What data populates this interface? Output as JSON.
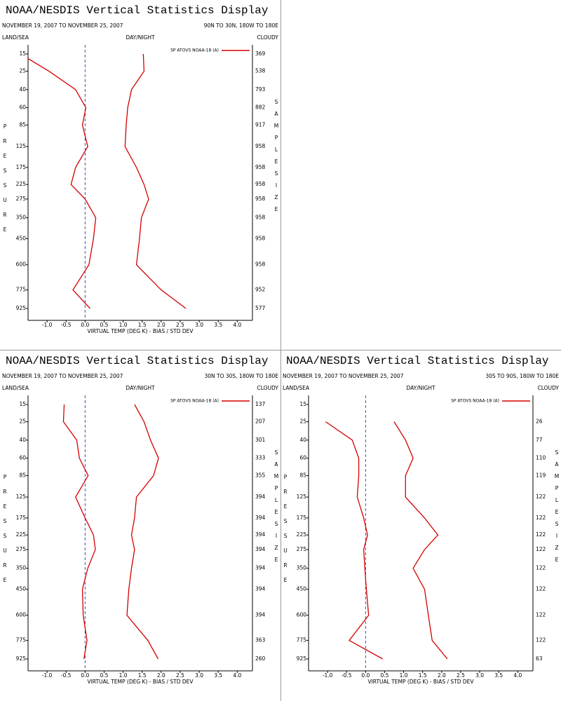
{
  "chart_data": [
    {
      "type": "line",
      "title": "NOAA/NESDIS Vertical Statistics Display",
      "subtitle": "NOVEMBER 19, 2007 TO NOVEMBER 25, 2007",
      "region": "90N TO 30N, 180W TO 180E",
      "land_sea": "LAND/SEA",
      "day_night": "DAY/NIGHT",
      "cloudy": "CLOUDY",
      "xlabel": "VIRTUAL TEMP (DEG K) - BIAS / STD DEV",
      "ylabel": "PRESSURE",
      "y2label": "SAMPLE SIZE",
      "xlim": [
        -1.5,
        4.4
      ],
      "xticks": [
        {
          "value": -1,
          "label": "-1.0"
        },
        -0.5,
        {
          "value": 0,
          "label": "0.0"
        },
        0.5,
        {
          "value": 1,
          "label": "1.0"
        },
        1.5,
        {
          "value": 2,
          "label": "2.0"
        },
        2.5,
        {
          "value": 3,
          "label": "3.0"
        },
        3.5,
        {
          "value": 4,
          "label": "4.0"
        }
      ],
      "ylim": [
        15,
        925
      ],
      "yscale": "power",
      "y_inverted": true,
      "y": [
        15,
        25,
        40,
        60,
        85,
        125,
        175,
        225,
        275,
        350,
        450,
        600,
        775,
        925
      ],
      "yticks": [
        15,
        25,
        40,
        60,
        85,
        125,
        175,
        225,
        275,
        350,
        450,
        600,
        775,
        925
      ],
      "sample_size": [
        369,
        538,
        793,
        882,
        917,
        958,
        958,
        958,
        958,
        958,
        958,
        958,
        952,
        577
      ],
      "zero_line": true,
      "series": [
        {
          "name": "SP ATOVS NOAA-18 (A)",
          "color": "#d40000",
          "values": [
            -1.7,
            -0.95,
            -0.25,
            0.02,
            -0.07,
            0.07,
            -0.25,
            -0.37,
            0.0,
            0.28,
            0.22,
            0.1,
            -0.32,
            0.13
          ]
        },
        {
          "color": "#d40000",
          "values": [
            1.53,
            1.55,
            1.22,
            1.12,
            1.08,
            1.05,
            1.35,
            1.55,
            1.67,
            1.48,
            1.43,
            1.35,
            2.0,
            2.65
          ]
        }
      ]
    },
    {
      "type": "line",
      "title": "NOAA/NESDIS Vertical Statistics Display",
      "subtitle": "NOVEMBER 19, 2007 TO NOVEMBER 25, 2007",
      "region": "30N TO 30S, 180W TO 180E",
      "land_sea": "LAND/SEA",
      "day_night": "DAY/NIGHT",
      "cloudy": "CLOUDY",
      "xlabel": "VIRTUAL TEMP (DEG K) - BIAS / STD DEV",
      "ylabel": "PRESSURE",
      "y2label": "SAMPLE SIZE",
      "xlim": [
        -1.5,
        4.4
      ],
      "xticks": [
        {
          "value": -1,
          "label": "-1.0"
        },
        -0.5,
        {
          "value": 0,
          "label": "0.0"
        },
        0.5,
        {
          "value": 1,
          "label": "1.0"
        },
        1.5,
        {
          "value": 2,
          "label": "2.0"
        },
        2.5,
        {
          "value": 3,
          "label": "3.0"
        },
        3.5,
        {
          "value": 4,
          "label": "4.0"
        }
      ],
      "ylim": [
        15,
        925
      ],
      "yscale": "power",
      "y_inverted": true,
      "y": [
        15,
        25,
        40,
        60,
        85,
        125,
        175,
        225,
        275,
        350,
        450,
        600,
        775,
        925
      ],
      "yticks": [
        15,
        25,
        40,
        60,
        85,
        125,
        175,
        225,
        275,
        350,
        450,
        600,
        775,
        925
      ],
      "sample_size": [
        137,
        207,
        301,
        333,
        355,
        394,
        394,
        394,
        394,
        394,
        394,
        394,
        363,
        260
      ],
      "zero_line": true,
      "series": [
        {
          "name": "SP ATOVS NOAA-18 (A)",
          "color": "#d40000",
          "values": [
            -0.55,
            -0.57,
            -0.22,
            -0.15,
            0.08,
            -0.25,
            0.0,
            0.22,
            0.27,
            0.07,
            -0.07,
            -0.05,
            0.05,
            -0.03
          ]
        },
        {
          "color": "#d40000",
          "values": [
            1.3,
            1.55,
            1.72,
            1.93,
            1.8,
            1.35,
            1.3,
            1.22,
            1.3,
            1.22,
            1.15,
            1.1,
            1.65,
            1.92
          ]
        }
      ]
    },
    {
      "type": "line",
      "title": "NOAA/NESDIS Vertical Statistics Display",
      "subtitle": "NOVEMBER 19, 2007 TO NOVEMBER 25, 2007",
      "region": "30S TO 90S, 180W TO 180E",
      "land_sea": "LAND/SEA",
      "day_night": "DAY/NIGHT",
      "cloudy": "CLOUDY",
      "xlabel": "VIRTUAL TEMP (DEG K) - BIAS / STD DEV",
      "ylabel": "PRESSURE",
      "y2label": "SAMPLE SIZE",
      "xlim": [
        -1.5,
        4.4
      ],
      "xticks": [
        {
          "value": -1,
          "label": "-1.0"
        },
        -0.5,
        {
          "value": 0,
          "label": "0.0"
        },
        0.5,
        {
          "value": 1,
          "label": "1.0"
        },
        1.5,
        {
          "value": 2,
          "label": "2.0"
        },
        2.5,
        {
          "value": 3,
          "label": "3.0"
        },
        3.5,
        {
          "value": 4,
          "label": "4.0"
        }
      ],
      "ylim": [
        15,
        925
      ],
      "yscale": "power",
      "y_inverted": true,
      "y": [
        15,
        25,
        40,
        60,
        85,
        125,
        175,
        225,
        275,
        350,
        450,
        600,
        775,
        925
      ],
      "yticks": [
        15,
        25,
        40,
        60,
        85,
        125,
        175,
        225,
        275,
        350,
        450,
        600,
        775,
        925
      ],
      "sample_size": [
        null,
        26,
        77,
        110,
        119,
        122,
        122,
        122,
        122,
        122,
        122,
        122,
        122,
        63
      ],
      "zero_line": true,
      "series": [
        {
          "name": "SP ATOVS NOAA-18 (A)",
          "color": "#d40000",
          "values": [
            null,
            -1.05,
            -0.35,
            -0.18,
            -0.18,
            -0.22,
            -0.05,
            0.05,
            -0.05,
            -0.02,
            0.02,
            0.08,
            -0.43,
            0.45
          ]
        },
        {
          "color": "#d40000",
          "values": [
            null,
            0.75,
            1.05,
            1.25,
            1.05,
            1.05,
            1.55,
            1.9,
            1.55,
            1.25,
            1.55,
            1.65,
            1.75,
            2.15
          ]
        }
      ]
    }
  ]
}
